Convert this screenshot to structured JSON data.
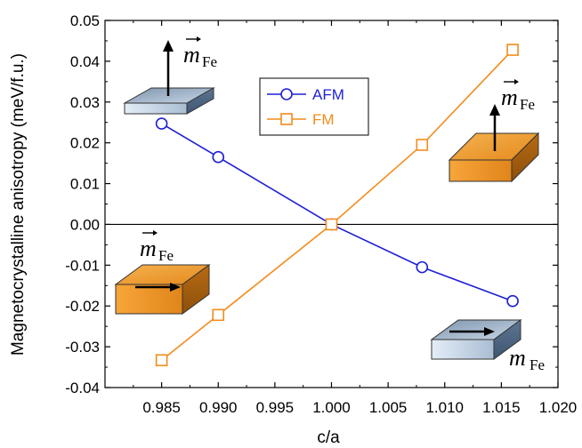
{
  "chart_data": {
    "type": "line",
    "xlabel": "c/a",
    "ylabel": "Magnetocrystalline anisotropy (meV/f.u.)",
    "xlim": [
      0.98,
      1.02
    ],
    "ylim": [
      -0.04,
      0.05
    ],
    "x_ticks": [
      "0.985",
      "0.990",
      "0.995",
      "1.000",
      "1.005",
      "1.010",
      "1.015",
      "1.020"
    ],
    "x_tick_values": [
      0.985,
      0.99,
      0.995,
      1.0,
      1.005,
      1.01,
      1.015,
      1.02
    ],
    "y_ticks": [
      "-0.04",
      "-0.03",
      "-0.02",
      "-0.01",
      "0.00",
      "0.01",
      "0.02",
      "0.03",
      "0.04",
      "0.05"
    ],
    "y_tick_values": [
      -0.04,
      -0.03,
      -0.02,
      -0.01,
      0.0,
      0.01,
      0.02,
      0.03,
      0.04,
      0.05
    ],
    "zero_line": true,
    "grid": false,
    "legend_position": "top-center",
    "series": [
      {
        "name": "AFM",
        "color": "#1f1fd6",
        "marker": "circle",
        "x": [
          0.985,
          0.99,
          1.0,
          1.008,
          1.016
        ],
        "y": [
          0.0247,
          0.0165,
          0.0,
          -0.0105,
          -0.0188
        ]
      },
      {
        "name": "FM",
        "color": "#f28c1c",
        "marker": "square",
        "x": [
          0.985,
          0.99,
          1.0,
          1.008,
          1.016
        ],
        "y": [
          -0.0333,
          -0.0222,
          0.0,
          0.0195,
          0.0428
        ]
      }
    ],
    "annotations": [
      {
        "id": "afm-up",
        "label": "m",
        "subscript": "Fe",
        "vector_arrow": true,
        "slab_color": "#9fb4cc",
        "moment": "up"
      },
      {
        "id": "fm-up",
        "label": "m",
        "subscript": "Fe",
        "vector_arrow": true,
        "slab_color": "#f0a030",
        "moment": "up"
      },
      {
        "id": "fm-in",
        "label": "m",
        "subscript": "Fe",
        "vector_arrow": true,
        "slab_color": "#f0a030",
        "moment": "in-plane"
      },
      {
        "id": "afm-in",
        "label": "m",
        "subscript": "Fe",
        "vector_arrow": false,
        "slab_color": "#9fb4cc",
        "moment": "in-plane"
      }
    ]
  }
}
